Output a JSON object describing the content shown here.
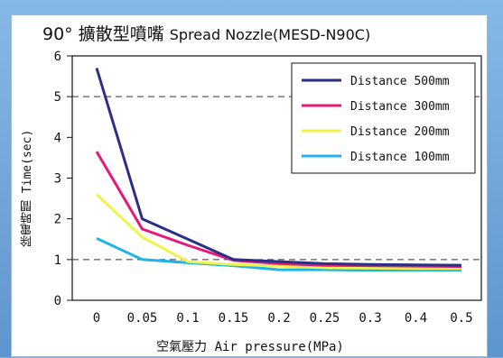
{
  "chart_data": {
    "type": "line",
    "title": "90° 擴散型噴嘴",
    "subtitle": "Spread Nozzle(MESD-N90C)",
    "xlabel": "空氣壓力 Air pressure(MPa)",
    "ylabel": "除電時間 Time(sec)",
    "x": [
      0,
      0.05,
      0.1,
      0.15,
      0.2,
      0.25,
      0.3,
      0.4,
      0.5
    ],
    "x_tick_labels": [
      "0",
      "0.05",
      "0.1",
      "0.15",
      "0.2",
      "0.25",
      "0.3",
      "0.4",
      "0.5"
    ],
    "ylim": [
      0,
      6
    ],
    "y_ticks": [
      0,
      1,
      2,
      3,
      4,
      5,
      6
    ],
    "grid": "horizontal dashed at 1 and 5",
    "legend_position": "top-right",
    "series": [
      {
        "name": "Distance 500mm",
        "color": "#2b2f86",
        "values": [
          5.7,
          2.0,
          1.5,
          1.0,
          0.95,
          0.9,
          0.88,
          0.87,
          0.86
        ]
      },
      {
        "name": "Distance 300mm",
        "color": "#e6197a",
        "values": [
          3.65,
          1.75,
          1.35,
          0.98,
          0.9,
          0.86,
          0.85,
          0.84,
          0.83
        ]
      },
      {
        "name": "Distance 200mm",
        "color": "#f2f24a",
        "values": [
          2.6,
          1.55,
          0.95,
          0.88,
          0.84,
          0.8,
          0.79,
          0.78,
          0.78
        ]
      },
      {
        "name": "Distance 100mm",
        "color": "#1fb4e8",
        "values": [
          1.52,
          1.0,
          0.92,
          0.85,
          0.75,
          0.75,
          0.74,
          0.74,
          0.74
        ]
      }
    ]
  }
}
